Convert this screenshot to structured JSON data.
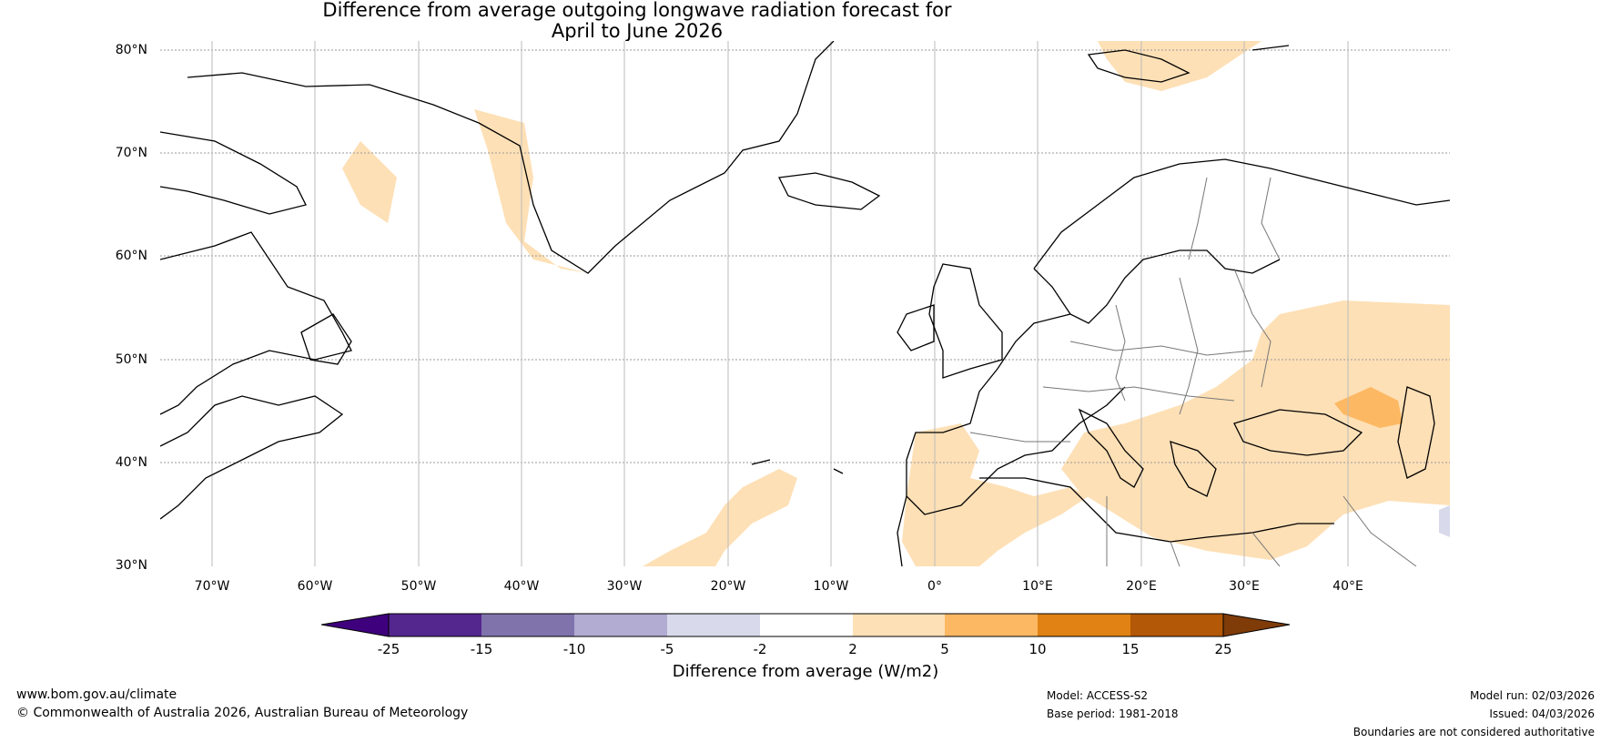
{
  "title": {
    "line1": "Difference from average outgoing longwave radiation forecast for",
    "line2": "April to June 2026"
  },
  "latitude_labels": [
    "80°N",
    "70°N",
    "60°N",
    "50°N",
    "40°N",
    "30°N"
  ],
  "longitude_labels": [
    "70°W",
    "60°W",
    "50°W",
    "40°W",
    "30°W",
    "20°W",
    "10°W",
    "0°",
    "10°E",
    "20°E",
    "30°E",
    "40°E"
  ],
  "colorbar": {
    "label": "Difference from average (W/m2)",
    "ticks": [
      "-25",
      "-15",
      "-10",
      "-5",
      "-2",
      "2",
      "5",
      "10",
      "15",
      "25"
    ],
    "colors": [
      "#3f007d",
      "#54278f",
      "#8073ac",
      "#b2abd2",
      "#d8daeb",
      "#ffffff",
      "#fee0b6",
      "#fdb863",
      "#e08214",
      "#b35806",
      "#7f3b08"
    ]
  },
  "footer": {
    "website": "www.bom.gov.au/climate",
    "copyright": "© Commonwealth of Australia 2026, Australian Bureau of Meteorology",
    "model": "Model: ACCESS-S2",
    "base_period": "Base period: 1981-2018",
    "model_run": "Model run: 02/03/2026",
    "issued": "Issued: 04/03/2026",
    "disclaimer": "Boundaries are not considered authoritative"
  }
}
